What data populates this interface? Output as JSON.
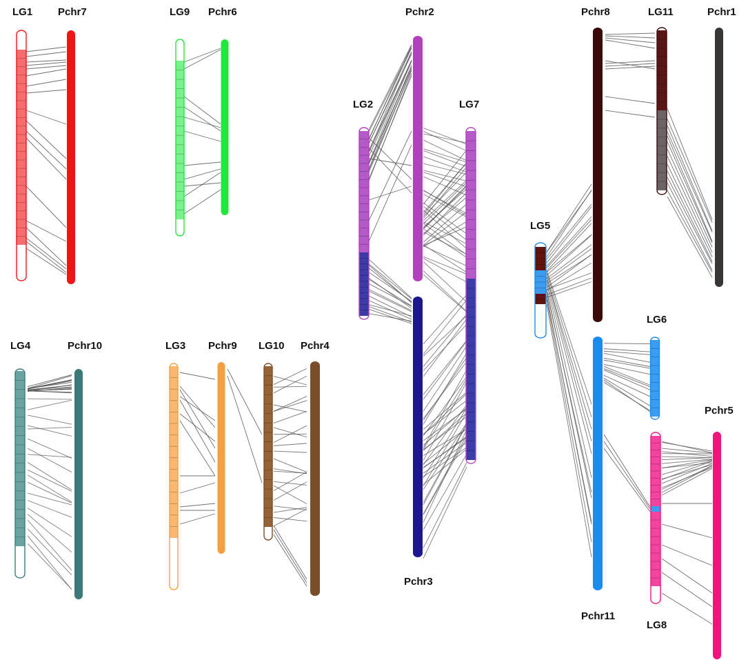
{
  "labels": {
    "lg1": "LG1",
    "pchr7": "Pchr7",
    "lg9": "LG9",
    "pchr6": "Pchr6",
    "pchr2": "Pchr2",
    "lg2": "LG2",
    "lg7": "LG7",
    "pchr3": "Pchr3",
    "pchr8": "Pchr8",
    "lg11": "LG11",
    "pchr1": "Pchr1",
    "lg5": "LG5",
    "lg6": "LG6",
    "pchr11": "Pchr11",
    "pchr5": "Pchr5",
    "lg8": "LG8",
    "lg4": "LG4",
    "pchr10": "Pchr10",
    "lg3": "LG3",
    "pchr9": "Pchr9",
    "lg10": "LG10",
    "pchr4": "Pchr4"
  },
  "colors": {
    "red": "#f01414",
    "red_light": "#f56e6e",
    "green": "#20e83a",
    "green_light": "#7cf08c",
    "purple": "#b440c0",
    "purple_light": "#b45ac8",
    "navy": "#1c1690",
    "navy_light": "#3c3ca8",
    "darkred": "#3a0a0a",
    "darkred_light": "#5a1616",
    "charcoal": "#3a3636",
    "charcoal_light": "#6a6464",
    "blue": "#1a8cf0",
    "blue_light": "#3c9cf0",
    "pink": "#f0147c",
    "pink_light": "#f046a0",
    "teal": "#3a7a78",
    "teal_light": "#6aa4a2",
    "orange": "#f5a040",
    "orange_light": "#f8b870",
    "brown": "#7a4e28",
    "brown_light": "#946438",
    "line": "#555555"
  }
}
